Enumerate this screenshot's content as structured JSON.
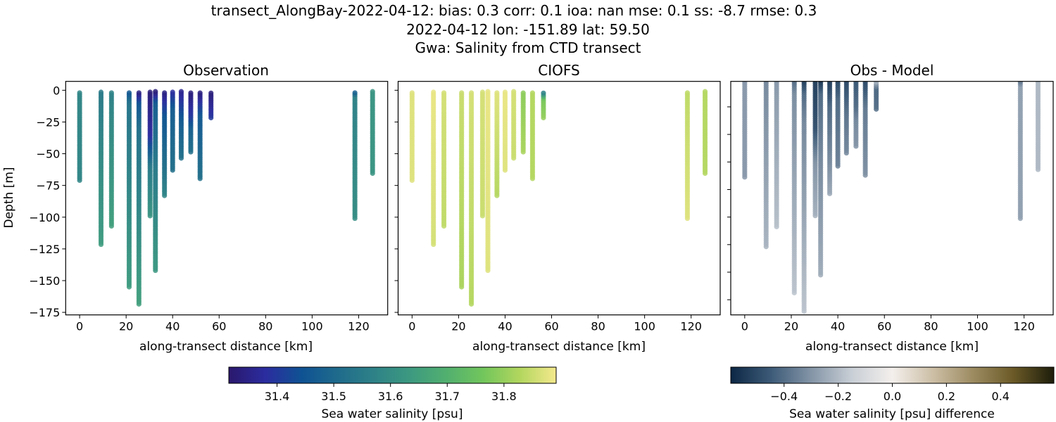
{
  "figure": {
    "title_lines": [
      "transect_AlongBay-2022-04-12: bias: 0.3  corr: 0.1  ioa: nan  mse: 0.1  ss: -8.7  rmse: 0.3",
      "2022-04-12 lon: -151.89 lat: 59.50",
      "Gwa: Salinity from CTD transect"
    ]
  },
  "chart_data": [
    {
      "type": "scatter",
      "title": "Observation",
      "xlabel": "along-transect distance [km]",
      "ylabel": "Depth [m]",
      "xlim": [
        -6,
        132.5
      ],
      "ylim": [
        -177,
        7
      ],
      "xticks": [
        0,
        20,
        40,
        60,
        80,
        100,
        120
      ],
      "yticks": [
        0,
        -25,
        -50,
        -75,
        -100,
        -125,
        -150,
        -175
      ],
      "colorbar": "salinity",
      "casts": [
        {
          "x": 0,
          "profile": [
            [
              -1,
              31.58
            ],
            [
              -71,
              31.58
            ]
          ]
        },
        {
          "x": 9.2,
          "profile": [
            [
              -1,
              31.55
            ],
            [
              -121.5,
              31.64
            ]
          ]
        },
        {
          "x": 13.7,
          "profile": [
            [
              -1,
              31.57
            ],
            [
              -107,
              31.65
            ]
          ]
        },
        {
          "x": 21.3,
          "profile": [
            [
              -1,
              31.45
            ],
            [
              -10,
              31.53
            ],
            [
              -155,
              31.64
            ]
          ]
        },
        {
          "x": 25.5,
          "profile": [
            [
              -1,
              31.33
            ],
            [
              -10,
              31.45
            ],
            [
              -30,
              31.52
            ],
            [
              -168.5,
              31.65
            ]
          ]
        },
        {
          "x": 30.3,
          "profile": [
            [
              -1,
              31.33
            ],
            [
              -35,
              31.38
            ],
            [
              -60,
              31.55
            ],
            [
              -99,
              31.62
            ]
          ]
        },
        {
          "x": 32.6,
          "profile": [
            [
              -1,
              31.33
            ],
            [
              -10,
              31.47
            ],
            [
              -60,
              31.55
            ],
            [
              -142,
              31.63
            ]
          ]
        },
        {
          "x": 36.5,
          "profile": [
            [
              -1,
              31.34
            ],
            [
              -20,
              31.45
            ],
            [
              -60,
              31.52
            ],
            [
              -83,
              31.58
            ]
          ]
        },
        {
          "x": 40,
          "profile": [
            [
              -1,
              31.38
            ],
            [
              -15,
              31.47
            ],
            [
              -63,
              31.52
            ]
          ]
        },
        {
          "x": 43.7,
          "profile": [
            [
              -1,
              31.36
            ],
            [
              -25,
              31.47
            ],
            [
              -53.5,
              31.52
            ]
          ]
        },
        {
          "x": 47.8,
          "profile": [
            [
              -1,
              31.33
            ],
            [
              -20,
              31.4
            ],
            [
              -30,
              31.48
            ],
            [
              -48.6,
              31.52
            ]
          ]
        },
        {
          "x": 51.8,
          "profile": [
            [
              -1,
              31.33
            ],
            [
              -20,
              31.46
            ],
            [
              -69.6,
              31.52
            ]
          ]
        },
        {
          "x": 56.5,
          "profile": [
            [
              -1,
              31.33
            ],
            [
              -21.7,
              31.4
            ]
          ]
        },
        {
          "x": 118.4,
          "profile": [
            [
              -1,
              31.45
            ],
            [
              -5,
              31.57
            ],
            [
              -101,
              31.6
            ]
          ]
        },
        {
          "x": 126,
          "profile": [
            [
              -1,
              31.62
            ],
            [
              -65.5,
              31.62
            ]
          ]
        }
      ]
    },
    {
      "type": "scatter",
      "title": "CIOFS",
      "xlabel": "along-transect distance [km]",
      "xlim": [
        -6,
        132.5
      ],
      "ylim": [
        -177,
        7
      ],
      "xticks": [
        0,
        20,
        40,
        60,
        80,
        100,
        120
      ],
      "yticks": [
        0,
        -25,
        -50,
        -75,
        -100,
        -125,
        -150,
        -175
      ],
      "colorbar": "salinity",
      "casts": [
        {
          "x": 0,
          "profile": [
            [
              -1,
              31.87
            ],
            [
              -71,
              31.87
            ]
          ]
        },
        {
          "x": 9.2,
          "profile": [
            [
              -1,
              31.88
            ],
            [
              -121.5,
              31.86
            ]
          ]
        },
        {
          "x": 13.7,
          "profile": [
            [
              -1,
              31.86
            ],
            [
              -107,
              31.84
            ]
          ]
        },
        {
          "x": 21.3,
          "profile": [
            [
              -1,
              31.85
            ],
            [
              -155,
              31.82
            ]
          ]
        },
        {
          "x": 25.5,
          "profile": [
            [
              -1,
              31.86
            ],
            [
              -168.5,
              31.83
            ]
          ]
        },
        {
          "x": 30.3,
          "profile": [
            [
              -1,
              31.86
            ],
            [
              -99,
              31.85
            ]
          ]
        },
        {
          "x": 32.6,
          "profile": [
            [
              -1,
              31.88
            ],
            [
              -142,
              31.87
            ]
          ]
        },
        {
          "x": 36.5,
          "profile": [
            [
              -1,
              31.87
            ],
            [
              -83,
              31.83
            ]
          ]
        },
        {
          "x": 40,
          "profile": [
            [
              -1,
              31.88
            ],
            [
              -63,
              31.87
            ]
          ]
        },
        {
          "x": 43.7,
          "profile": [
            [
              -1,
              31.86
            ],
            [
              -53.5,
              31.85
            ]
          ]
        },
        {
          "x": 47.8,
          "profile": [
            [
              -1,
              31.79
            ],
            [
              -48.6,
              31.82
            ]
          ]
        },
        {
          "x": 51.8,
          "profile": [
            [
              -1,
              31.83
            ],
            [
              -69.6,
              31.83
            ]
          ]
        },
        {
          "x": 56.5,
          "profile": [
            [
              -1,
              31.5
            ],
            [
              -3,
              31.62
            ],
            [
              -7,
              31.77
            ],
            [
              -21.7,
              31.8
            ]
          ]
        },
        {
          "x": 118.4,
          "profile": [
            [
              -1,
              31.84
            ],
            [
              -101,
              31.87
            ]
          ]
        },
        {
          "x": 126,
          "profile": [
            [
              -1,
              31.83
            ],
            [
              -65.5,
              31.83
            ]
          ]
        }
      ]
    },
    {
      "type": "scatter",
      "title": "Obs - Model",
      "xlabel": "along-transect distance [km]",
      "xlim": [
        -6,
        132.5
      ],
      "ylim": [
        -171,
        -1.5
      ],
      "xticks": [
        0,
        20,
        40,
        60,
        80,
        100,
        120
      ],
      "yticks": [
        -20,
        -40,
        -60,
        -80,
        -100,
        -120,
        -140,
        -160
      ],
      "colorbar": "difference",
      "values": "Observation minus CIOFS"
    }
  ],
  "colorbars": {
    "salinity": {
      "label": "Sea water salinity [psu]",
      "range": [
        31.315,
        31.892
      ],
      "ticks": [
        "31.4",
        "31.5",
        "31.6",
        "31.7",
        "31.8"
      ],
      "colors": [
        "#2a186c",
        "#2b2c9f",
        "#0f5293",
        "#1f6b8c",
        "#2e8287",
        "#3d9a80",
        "#52b06f",
        "#72c65c",
        "#b2d65e",
        "#f5e98d"
      ]
    },
    "difference": {
      "label": "Sea water salinity [psu] difference",
      "range": [
        -0.597,
        0.597
      ],
      "ticks": [
        "−0.4",
        "−0.2",
        "0.0",
        "0.2",
        "0.4"
      ],
      "colors": [
        "#0c2745",
        "#3d5b78",
        "#8495a7",
        "#c9cfd6",
        "#f3efec",
        "#cdbfa6",
        "#9c8b61",
        "#6b5a27",
        "#1d1d0b"
      ]
    }
  }
}
